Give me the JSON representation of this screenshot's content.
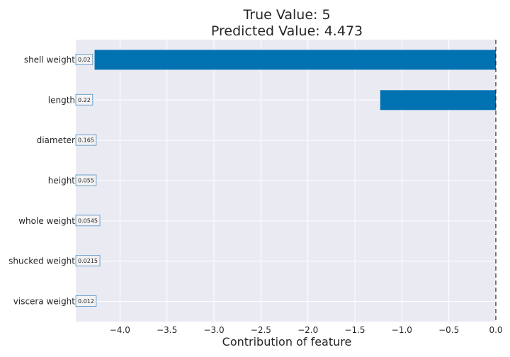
{
  "chart_data": {
    "type": "bar",
    "orientation": "horizontal",
    "title": "True Value: 5",
    "subtitle": "Predicted Value: 4.473",
    "xlabel": "Contribution of feature",
    "ylabel": "",
    "categories": [
      "shell weight",
      "length",
      "diameter",
      "height",
      "whole weight",
      "shucked weight",
      "viscera weight"
    ],
    "values": [
      -4.27,
      -1.23,
      0,
      0,
      0,
      0,
      0
    ],
    "value_labels": [
      "0.02",
      "0.22",
      "0.165",
      "0.055",
      "0.0545",
      "0.0215",
      "0.012"
    ],
    "xlim": [
      -4.47,
      0.0
    ],
    "xticks": [
      -4.0,
      -3.5,
      -3.0,
      -2.5,
      -2.0,
      -1.5,
      -1.0,
      -0.5,
      0.0
    ],
    "xtick_labels": [
      "−4.0",
      "−3.5",
      "−3.0",
      "−2.5",
      "−2.0",
      "−1.5",
      "−1.0",
      "−0.5",
      "0.0"
    ],
    "grid": true,
    "reference_line": 0.0,
    "colors": {
      "bar": "#0072b2",
      "plot_bg": "#eaeaf2",
      "grid": "#ffffff",
      "label_box_border": "#4c8fc4",
      "reference_line": "#000000"
    }
  }
}
